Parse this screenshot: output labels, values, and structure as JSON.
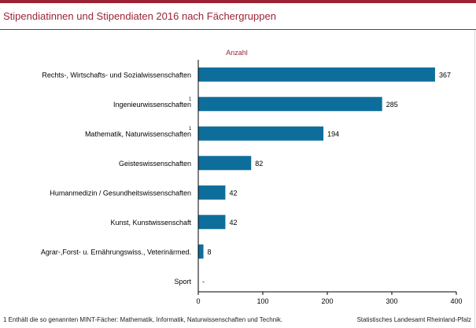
{
  "title": "Stipendiatinnen und Stipendiaten 2016 nach Fächergruppen",
  "footnote": "1 Enthält die so genannten MINT-Fächer: Mathematik, Informatik, Naturwissenschaften und Technik.",
  "source": "Statistisches Landesamt Rheinland-Pfalz",
  "colors": {
    "accent": "#9b2335",
    "bar": "#0e6e9b"
  },
  "chart_data": {
    "type": "bar",
    "orientation": "horizontal",
    "title": "Stipendiatinnen und Stipendiaten 2016 nach Fächergruppen",
    "unit_label": "Anzahl",
    "categories": [
      "Rechts-, Wirtschafts- und Sozialwissenschaften",
      "Ingenieurwissenschaften",
      "Mathematik, Naturwissenschaften",
      "Geisteswissenschaften",
      "Humanmedizin / Gesundheitswissenschaften",
      "Kunst, Kunstwissenschaft",
      "Agrar-,Forst- u. Ernährungswiss., Veterinärmed.",
      "Sport"
    ],
    "footnote_marks": [
      "",
      "1",
      "1",
      "",
      "",
      "",
      "",
      ""
    ],
    "values": [
      367,
      285,
      194,
      82,
      42,
      42,
      8,
      null
    ],
    "value_labels": [
      "367",
      "285",
      "194",
      "82",
      "42",
      "42",
      "8",
      "-"
    ],
    "xlim": [
      0,
      400
    ],
    "xticks": [
      "0",
      "100",
      "200",
      "300",
      "400"
    ],
    "grid": false,
    "legend": "none"
  }
}
